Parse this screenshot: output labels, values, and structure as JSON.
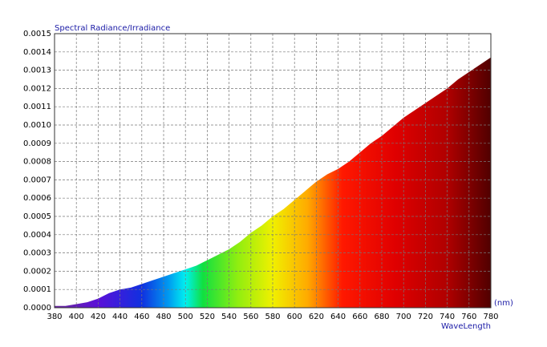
{
  "chart_data": {
    "type": "area",
    "y_label": "Spectral Radiance/Irradiance",
    "x_label": "WaveLength",
    "x_unit": "(nm)",
    "x": [
      380,
      390,
      400,
      410,
      420,
      430,
      440,
      450,
      460,
      470,
      480,
      490,
      500,
      510,
      520,
      530,
      540,
      550,
      560,
      570,
      580,
      590,
      600,
      610,
      620,
      630,
      640,
      650,
      660,
      670,
      680,
      690,
      700,
      710,
      720,
      730,
      740,
      750,
      760,
      770,
      780
    ],
    "values": [
      1e-05,
      1e-05,
      2e-05,
      3e-05,
      5e-05,
      8e-05,
      0.0001,
      0.00011,
      0.00013,
      0.00015,
      0.00017,
      0.00019,
      0.00021,
      0.00023,
      0.00026,
      0.00029,
      0.00032,
      0.00036,
      0.00041,
      0.00045,
      0.0005,
      0.00054,
      0.00059,
      0.00064,
      0.00069,
      0.00073,
      0.00076,
      0.0008,
      0.00085,
      0.0009,
      0.00094,
      0.00099,
      0.00104,
      0.00108,
      0.00112,
      0.00116,
      0.0012,
      0.00125,
      0.00129,
      0.00133,
      0.00137
    ],
    "xlim": [
      380,
      780
    ],
    "xticks": [
      380,
      400,
      420,
      440,
      460,
      480,
      500,
      520,
      540,
      560,
      580,
      600,
      620,
      640,
      660,
      680,
      700,
      720,
      740,
      760,
      780
    ],
    "ylim": [
      0,
      0.0015
    ],
    "yticks": [
      {
        "value": 0,
        "label": "0.0000"
      },
      {
        "value": 0.0001,
        "label": "0.0001"
      },
      {
        "value": 0.0002,
        "label": "0.0002"
      },
      {
        "value": 0.0003,
        "label": "0.0003"
      },
      {
        "value": 0.0004,
        "label": "0.0004"
      },
      {
        "value": 0.0005,
        "label": "0.0005"
      },
      {
        "value": 0.0006,
        "label": "0.0006"
      },
      {
        "value": 0.0007,
        "label": "0.0007"
      },
      {
        "value": 0.0008,
        "label": "0.0008"
      },
      {
        "value": 0.0009,
        "label": "0.0009"
      },
      {
        "value": 0.001,
        "label": "0.0010"
      },
      {
        "value": 0.0011,
        "label": "0.0011"
      },
      {
        "value": 0.0012,
        "label": "0.0012"
      },
      {
        "value": 0.0013,
        "label": "0.0013"
      },
      {
        "value": 0.0014,
        "label": "0.0014"
      },
      {
        "value": 0.0015,
        "label": "0.0015"
      }
    ],
    "grid": true
  }
}
